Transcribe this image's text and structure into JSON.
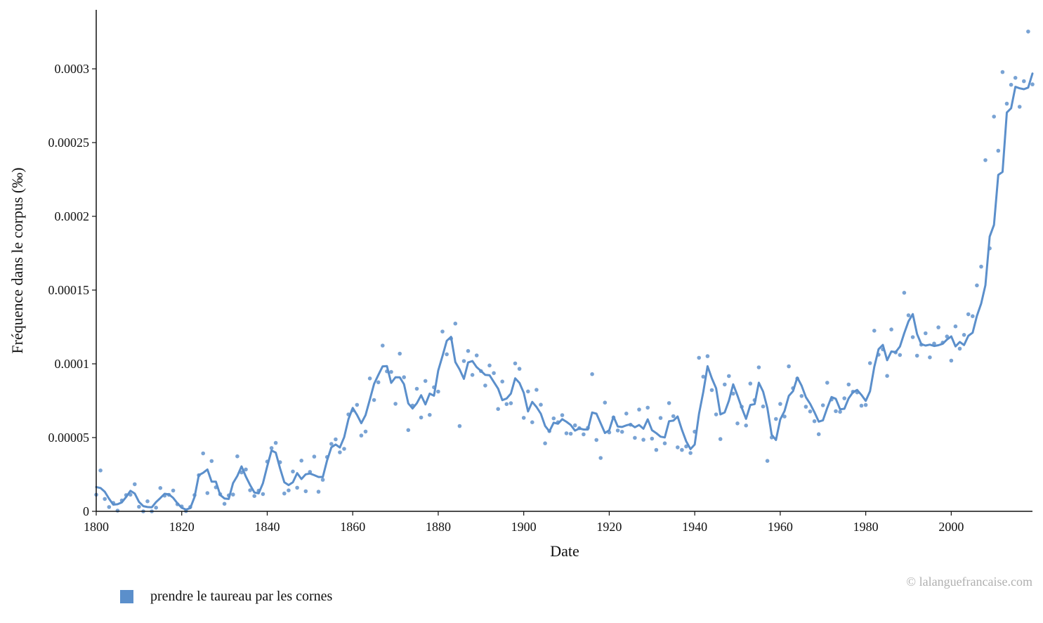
{
  "chart_data": {
    "type": "line",
    "xlabel": "Date",
    "ylabel": "Fréquence dans le corpus (‰)",
    "xlim": [
      1800,
      2019
    ],
    "ylim": [
      0,
      0.00034
    ],
    "xticks": [
      1800,
      1820,
      1840,
      1860,
      1880,
      1900,
      1920,
      1940,
      1960,
      1980,
      2000
    ],
    "xtick_labels": [
      "1800",
      "1820",
      "1840",
      "1860",
      "1880",
      "1900",
      "1920",
      "1940",
      "1960",
      "1980",
      "2000"
    ],
    "yticks": [
      0,
      5e-05,
      0.0001,
      0.00015,
      0.0002,
      0.00025,
      0.0003
    ],
    "ytick_labels": [
      "0",
      "0.00005",
      "0.0001",
      "0.00015",
      "0.0002",
      "0.00025",
      "0.0003"
    ],
    "grid": false,
    "legend_position": "bottom-left",
    "series": [
      {
        "name": "prendre le taureau par les cornes",
        "color": "#5b8fcb",
        "x": [
          1800,
          1801,
          1802,
          1803,
          1804,
          1805,
          1806,
          1807,
          1808,
          1809,
          1810,
          1811,
          1812,
          1813,
          1814,
          1815,
          1816,
          1817,
          1818,
          1819,
          1820,
          1821,
          1822,
          1823,
          1824,
          1825,
          1826,
          1827,
          1828,
          1829,
          1830,
          1831,
          1832,
          1833,
          1834,
          1835,
          1836,
          1837,
          1838,
          1839,
          1840,
          1841,
          1842,
          1843,
          1844,
          1845,
          1846,
          1847,
          1848,
          1849,
          1850,
          1851,
          1852,
          1853,
          1854,
          1855,
          1856,
          1857,
          1858,
          1859,
          1860,
          1861,
          1862,
          1863,
          1864,
          1865,
          1866,
          1867,
          1868,
          1869,
          1870,
          1871,
          1872,
          1873,
          1874,
          1875,
          1876,
          1877,
          1878,
          1879,
          1880,
          1881,
          1882,
          1883,
          1884,
          1885,
          1886,
          1887,
          1888,
          1889,
          1890,
          1891,
          1892,
          1893,
          1894,
          1895,
          1896,
          1897,
          1898,
          1899,
          1900,
          1901,
          1902,
          1903,
          1904,
          1905,
          1906,
          1907,
          1908,
          1909,
          1910,
          1911,
          1912,
          1913,
          1914,
          1915,
          1916,
          1917,
          1918,
          1919,
          1920,
          1921,
          1922,
          1923,
          1924,
          1925,
          1926,
          1927,
          1928,
          1929,
          1930,
          1931,
          1932,
          1933,
          1934,
          1935,
          1936,
          1937,
          1938,
          1939,
          1940,
          1941,
          1942,
          1943,
          1944,
          1945,
          1946,
          1947,
          1948,
          1949,
          1950,
          1951,
          1952,
          1953,
          1954,
          1955,
          1956,
          1957,
          1958,
          1959,
          1960,
          1961,
          1962,
          1963,
          1964,
          1965,
          1966,
          1967,
          1968,
          1969,
          1970,
          1971,
          1972,
          1973,
          1974,
          1975,
          1976,
          1977,
          1978,
          1979,
          1980,
          1981,
          1982,
          1983,
          1984,
          1985,
          1986,
          1987,
          1988,
          1989,
          1990,
          1991,
          1992,
          1993,
          1994,
          1995,
          1996,
          1997,
          1998,
          1999,
          2000,
          2001,
          2002,
          2003,
          2004,
          2005,
          2006,
          2007,
          2008,
          2009,
          2010,
          2011,
          2012,
          2013,
          2014,
          2015,
          2016,
          2017,
          2018,
          2019
        ],
        "smoothed": [
          1.65e-05,
          1.58e-05,
          1.33e-05,
          8.5e-06,
          4.5e-06,
          4.8e-06,
          6.1e-06,
          9.7e-06,
          1.39e-05,
          1.21e-05,
          6.4e-06,
          3.5e-06,
          2.9e-06,
          2.7e-06,
          6.3e-06,
          9e-06,
          1.19e-05,
          1.15e-05,
          9.1e-06,
          5.5e-06,
          2.4e-06,
          1.2e-06,
          2.2e-06,
          9.7e-06,
          2.45e-05,
          2.61e-05,
          2.84e-05,
          2.01e-05,
          2.01e-05,
          1.11e-05,
          8.7e-06,
          8.4e-06,
          1.91e-05,
          2.4e-05,
          3.05e-05,
          2.36e-05,
          1.78e-05,
          1.28e-05,
          1.22e-05,
          1.91e-05,
          3.06e-05,
          4.13e-05,
          3.98e-05,
          2.92e-05,
          1.97e-05,
          1.78e-05,
          1.97e-05,
          2.59e-05,
          2.19e-05,
          2.51e-05,
          2.56e-05,
          2.45e-05,
          2.33e-05,
          2.33e-05,
          3.45e-05,
          4.34e-05,
          4.53e-05,
          4.33e-05,
          5.02e-05,
          6.25e-05,
          7.01e-05,
          6.54e-05,
          5.97e-05,
          6.53e-05,
          7.58e-05,
          8.64e-05,
          9.25e-05,
          9.83e-05,
          9.85e-05,
          8.71e-05,
          9.09e-05,
          9.08e-05,
          8.62e-05,
          7.32e-05,
          6.97e-05,
          7.33e-05,
          7.87e-05,
          7.25e-05,
          7.98e-05,
          7.84e-05,
          9.54e-05,
          0.0001053,
          0.0001156,
          0.0001183,
          0.0001012,
          9.62e-05,
          8.98e-05,
          0.0001009,
          0.0001019,
          9.77e-05,
          9.52e-05,
          9.25e-05,
          9.23e-05,
          8.77e-05,
          8.32e-05,
          7.54e-05,
          7.65e-05,
          7.98e-05,
          9.02e-05,
          8.71e-05,
          8.04e-05,
          6.77e-05,
          7.42e-05,
          7.07e-05,
          6.62e-05,
          5.79e-05,
          5.42e-05,
          6.01e-05,
          5.94e-05,
          6.25e-05,
          6.07e-05,
          5.85e-05,
          5.47e-05,
          5.62e-05,
          5.55e-05,
          5.55e-05,
          6.7e-05,
          6.62e-05,
          5.97e-05,
          5.31e-05,
          5.5e-05,
          6.43e-05,
          5.75e-05,
          5.72e-05,
          5.83e-05,
          5.9e-05,
          5.7e-05,
          5.85e-05,
          5.6e-05,
          6.24e-05,
          5.5e-05,
          5.3e-05,
          5.06e-05,
          5.01e-05,
          6.11e-05,
          6.15e-05,
          6.43e-05,
          5.53e-05,
          4.75e-05,
          4.22e-05,
          4.53e-05,
          6.6e-05,
          8.09e-05,
          9.84e-05,
          9.02e-05,
          8.34e-05,
          6.57e-05,
          6.71e-05,
          7.5e-05,
          8.61e-05,
          7.85e-05,
          7.02e-05,
          6.27e-05,
          7.21e-05,
          7.27e-05,
          8.72e-05,
          8.12e-05,
          7e-05,
          5.19e-05,
          4.84e-05,
          6.23e-05,
          6.8e-05,
          7.83e-05,
          8.15e-05,
          9.07e-05,
          8.52e-05,
          7.74e-05,
          7.29e-05,
          6.72e-05,
          6.08e-05,
          6.17e-05,
          7.01e-05,
          7.75e-05,
          7.63e-05,
          6.92e-05,
          6.95e-05,
          7.66e-05,
          8.07e-05,
          8.23e-05,
          7.89e-05,
          7.49e-05,
          8.14e-05,
          9.79e-05,
          0.0001099,
          0.0001128,
          0.0001025,
          0.0001084,
          0.0001079,
          0.0001117,
          0.0001207,
          0.0001288,
          0.0001337,
          0.0001202,
          0.0001134,
          0.0001124,
          0.000113,
          0.0001121,
          0.0001126,
          0.0001136,
          0.0001165,
          0.0001186,
          0.0001118,
          0.0001148,
          0.0001127,
          0.000119,
          0.0001211,
          0.0001325,
          0.0001409,
          0.0001533,
          0.0001863,
          0.0001942,
          0.0002281,
          0.0002301,
          0.0002704,
          0.0002733,
          0.0002878,
          0.0002868,
          0.0002862,
          0.0002873,
          0.0002968,
          0.0003017,
          0.0003011
        ],
        "points": [
          1.13e-05,
          2.77e-05,
          8.4e-06,
          2.9e-06,
          5.7e-06,
          5e-07,
          7.4e-06,
          1.1e-05,
          1.13e-05,
          1.84e-05,
          3.1e-06,
          0,
          6.8e-06,
          0,
          2.5e-06,
          1.58e-05,
          1.06e-05,
          1.12e-05,
          1.41e-05,
          4.8e-06,
          3.3e-06,
          2e-07,
          2.9e-06,
          1.1e-05,
          2.45e-05,
          3.93e-05,
          1.24e-05,
          3.41e-05,
          1.63e-05,
          1.16e-05,
          5.1e-06,
          1.08e-05,
          1.14e-05,
          3.73e-05,
          2.64e-05,
          2.84e-05,
          1.43e-05,
          1.04e-05,
          1.4e-05,
          1.17e-05,
          3.37e-05,
          4.29e-05,
          4.64e-05,
          3.33e-05,
          1.21e-05,
          1.42e-05,
          2.7e-05,
          1.6e-05,
          3.44e-05,
          1.36e-05,
          2.67e-05,
          3.71e-05,
          1.33e-05,
          2.14e-05,
          3.68e-05,
          4.57e-05,
          4.88e-05,
          4e-05,
          4.24e-05,
          6.57e-05,
          6.85e-05,
          7.22e-05,
          5.14e-05,
          5.41e-05,
          9.01e-05,
          7.55e-05,
          8.75e-05,
          0.0001124,
          9.49e-05,
          9.45e-05,
          7.29e-05,
          0.0001069,
          9.09e-05,
          5.51e-05,
          7.17e-05,
          8.31e-05,
          6.36e-05,
          8.84e-05,
          6.54e-05,
          8.41e-05,
          8.12e-05,
          0.0001219,
          0.0001065,
          0.0001171,
          0.0001273,
          5.78e-05,
          0.0001019,
          0.0001087,
          9.25e-05,
          0.0001057,
          9.51e-05,
          8.53e-05,
          9.89e-05,
          9.37e-05,
          6.94e-05,
          8.8e-05,
          7.27e-05,
          7.33e-05,
          0.0001003,
          9.66e-05,
          6.34e-05,
          8.13e-05,
          6.04e-05,
          8.24e-05,
          7.23e-05,
          4.61e-05,
          5.44e-05,
          6.3e-05,
          6.04e-05,
          6.52e-05,
          5.29e-05,
          5.26e-05,
          5.83e-05,
          5.64e-05,
          5.22e-05,
          5.66e-05,
          9.3e-05,
          4.84e-05,
          3.62e-05,
          7.37e-05,
          5.35e-05,
          6.36e-05,
          5.48e-05,
          5.39e-05,
          6.63e-05,
          5.87e-05,
          4.98e-05,
          6.9e-05,
          4.85e-05,
          7.03e-05,
          4.93e-05,
          4.16e-05,
          6.33e-05,
          4.61e-05,
          7.34e-05,
          6.45e-05,
          4.34e-05,
          4.16e-05,
          4.4e-05,
          3.95e-05,
          5.4e-05,
          0.0001041,
          9.13e-05,
          0.0001052,
          8.22e-05,
          6.57e-05,
          4.9e-05,
          8.6e-05,
          9.17e-05,
          7.98e-05,
          5.96e-05,
          7.09e-05,
          5.82e-05,
          8.66e-05,
          7.54e-05,
          9.76e-05,
          7.11e-05,
          3.42e-05,
          5.01e-05,
          6.26e-05,
          7.28e-05,
          6.43e-05,
          9.83e-05,
          8.35e-05,
          9e-05,
          7.82e-05,
          7.09e-05,
          6.77e-05,
          6.11e-05,
          5.23e-05,
          7.19e-05,
          8.72e-05,
          7.58e-05,
          6.79e-05,
          6.75e-05,
          7.66e-05,
          8.6e-05,
          8.11e-05,
          8.06e-05,
          7.16e-05,
          7.21e-05,
          0.0001005,
          0.0001225,
          0.0001062,
          0.0001098,
          9.18e-05,
          0.0001233,
          0.0001077,
          0.000106,
          0.0001482,
          0.0001329,
          0.0001181,
          0.0001055,
          0.000113,
          0.0001207,
          0.0001044,
          0.0001137,
          0.0001247,
          0.0001144,
          0.0001185,
          0.0001022,
          0.0001254,
          0.0001103,
          0.0001196,
          0.0001336,
          0.0001323,
          0.0001532,
          0.0001659,
          0.0002381,
          0.0001783,
          0.0002676,
          0.0002445,
          0.0002978,
          0.0002764,
          0.0002892,
          0.0002939,
          0.0002743,
          0.0002916,
          0.0003253,
          0.0002895
        ]
      }
    ]
  },
  "legend": {
    "label": "prendre le taureau par les cornes",
    "color": "#5b8fcb"
  },
  "credit": "© lalanguefrancaise.com"
}
